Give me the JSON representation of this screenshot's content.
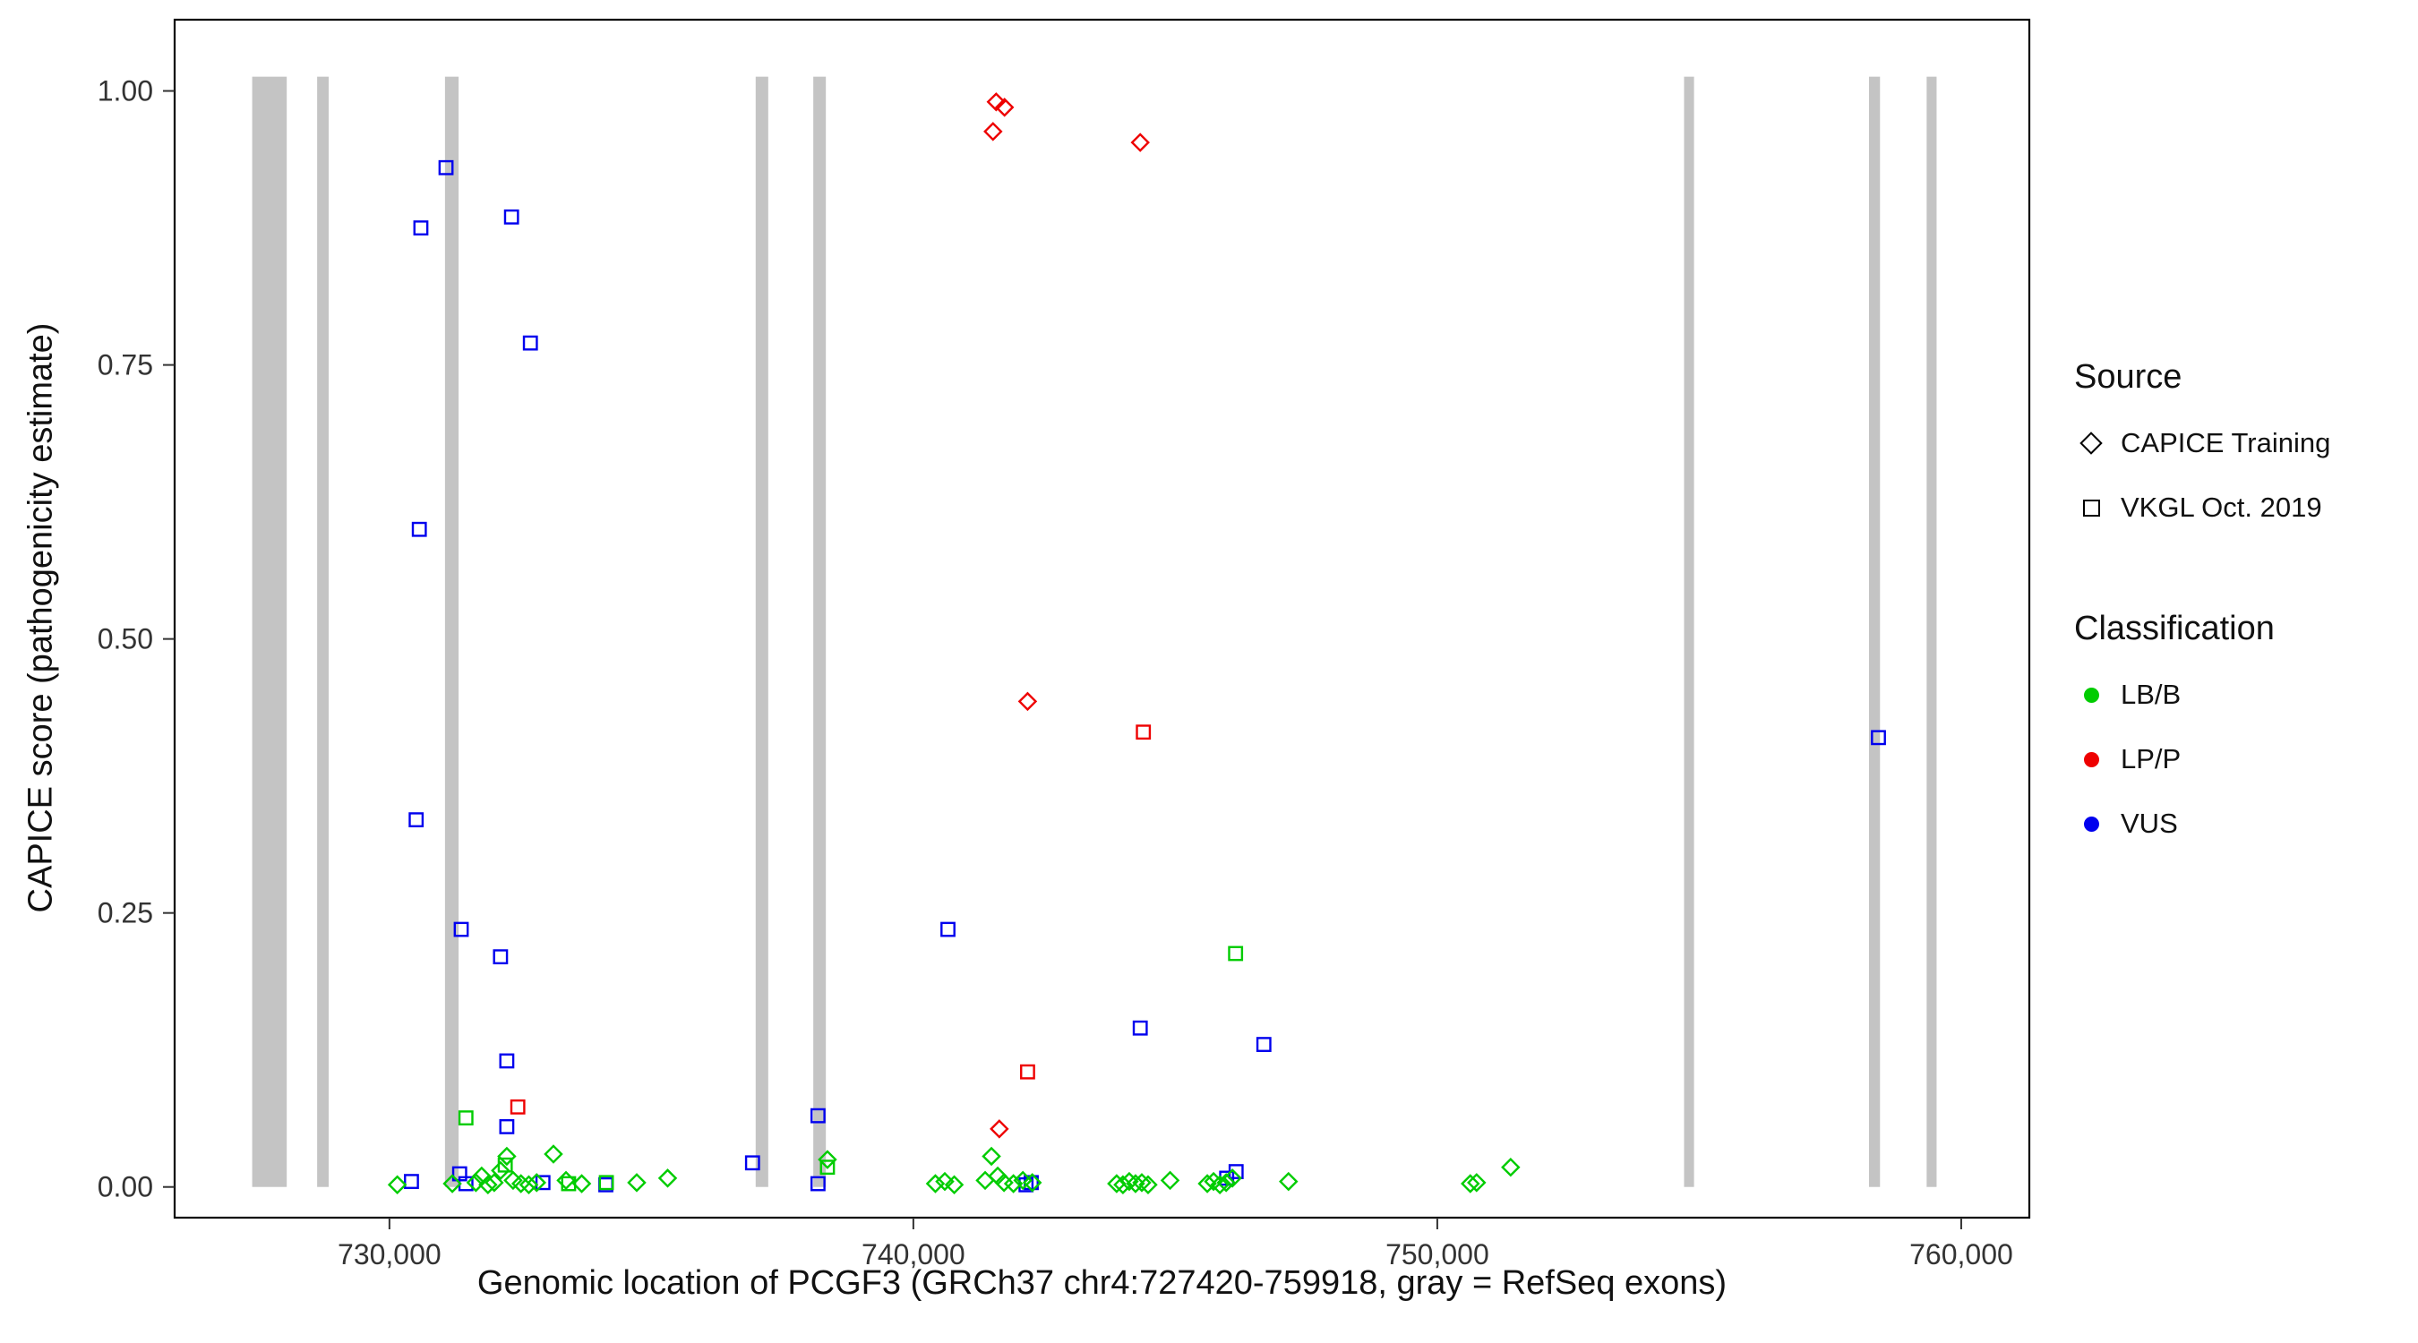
{
  "legend": {
    "source": {
      "title": "Source",
      "items": [
        {
          "label": "CAPICE Training",
          "shape": "diamond"
        },
        {
          "label": "VKGL Oct. 2019",
          "shape": "square"
        }
      ]
    },
    "classification": {
      "title": "Classification",
      "items": [
        {
          "label": "LB/B",
          "color": "#00CC00"
        },
        {
          "label": "LP/P",
          "color": "#EE0000"
        },
        {
          "label": "VUS",
          "color": "#0000EE"
        }
      ]
    }
  },
  "chart_data": {
    "type": "scatter",
    "title": "",
    "xlabel": "Genomic location of PCGF3 (GRCh37 chr4:727420-759918, gray = RefSeq exons)",
    "ylabel": "CAPICE score (pathogenicity estimate)",
    "xlim": [
      725900,
      761300
    ],
    "ylim": [
      -0.028,
      1.065
    ],
    "grid": false,
    "legend_position": "right",
    "x_ticks": [
      {
        "value": 730000,
        "label": "730,000"
      },
      {
        "value": 740000,
        "label": "740,000"
      },
      {
        "value": 750000,
        "label": "750,000"
      },
      {
        "value": 760000,
        "label": "760,000"
      }
    ],
    "y_ticks": [
      {
        "value": 0.0,
        "label": "0.00"
      },
      {
        "value": 0.25,
        "label": "0.25"
      },
      {
        "value": 0.5,
        "label": "0.50"
      },
      {
        "value": 0.75,
        "label": "0.75"
      },
      {
        "value": 1.0,
        "label": "1.00"
      }
    ],
    "exon_color": "#C4C4C4",
    "exon_y": [
      0.0,
      1.013
    ],
    "exons": [
      [
        727380,
        728040
      ],
      [
        728620,
        728840
      ],
      [
        731060,
        731320
      ],
      [
        736990,
        737230
      ],
      [
        738090,
        738330
      ],
      [
        754710,
        754900
      ],
      [
        758240,
        758450
      ],
      [
        759340,
        759530
      ]
    ],
    "series": [
      {
        "name": "VKGL Oct. 2019 / VUS",
        "source": "VKGL Oct. 2019",
        "classification": "VUS",
        "shape": "square",
        "color": "#0000EE",
        "points": [
          [
            731080,
            0.93
          ],
          [
            730600,
            0.875
          ],
          [
            732330,
            0.885
          ],
          [
            732690,
            0.77
          ],
          [
            730570,
            0.6
          ],
          [
            730510,
            0.335
          ],
          [
            731370,
            0.235
          ],
          [
            732120,
            0.21
          ],
          [
            740660,
            0.235
          ],
          [
            732240,
            0.115
          ],
          [
            744330,
            0.145
          ],
          [
            746690,
            0.13
          ],
          [
            758420,
            0.41
          ],
          [
            738180,
            0.065
          ],
          [
            732240,
            0.055
          ],
          [
            736930,
            0.022
          ],
          [
            730420,
            0.005
          ],
          [
            731340,
            0.012
          ],
          [
            732930,
            0.004
          ],
          [
            734130,
            0.002
          ],
          [
            738180,
            0.003
          ],
          [
            742250,
            0.004
          ],
          [
            746160,
            0.014
          ],
          [
            742150,
            0.002
          ],
          [
            745980,
            0.008
          ],
          [
            731460,
            0.003
          ]
        ]
      },
      {
        "name": "CAPICE Training / LP/P",
        "source": "CAPICE Training",
        "classification": "LP/P",
        "shape": "diamond",
        "color": "#EE0000",
        "points": [
          [
            741580,
            0.99
          ],
          [
            741740,
            0.985
          ],
          [
            741520,
            0.963
          ],
          [
            744330,
            0.953
          ],
          [
            742180,
            0.443
          ],
          [
            741640,
            0.053
          ]
        ]
      },
      {
        "name": "VKGL Oct. 2019 / LP/P",
        "source": "VKGL Oct. 2019",
        "classification": "LP/P",
        "shape": "square",
        "color": "#EE0000",
        "points": [
          [
            744390,
            0.415
          ],
          [
            742180,
            0.105
          ],
          [
            732450,
            0.073
          ]
        ]
      },
      {
        "name": "VKGL Oct. 2019 / LB/B",
        "source": "VKGL Oct. 2019",
        "classification": "LB/B",
        "shape": "square",
        "color": "#00CC00",
        "points": [
          [
            731460,
            0.063
          ],
          [
            746150,
            0.213
          ],
          [
            732210,
            0.02
          ],
          [
            738360,
            0.018
          ],
          [
            734140,
            0.004
          ],
          [
            733420,
            0.003
          ]
        ]
      },
      {
        "name": "CAPICE Training / LB/B",
        "source": "CAPICE Training",
        "classification": "LB/B",
        "shape": "diamond",
        "color": "#00CC00",
        "points": [
          [
            730150,
            0.002
          ],
          [
            731200,
            0.003
          ],
          [
            731650,
            0.004
          ],
          [
            731760,
            0.01
          ],
          [
            731880,
            0.002
          ],
          [
            732000,
            0.004
          ],
          [
            732120,
            0.015
          ],
          [
            732240,
            0.028
          ],
          [
            732360,
            0.006
          ],
          [
            732510,
            0.003
          ],
          [
            732660,
            0.002
          ],
          [
            732810,
            0.004
          ],
          [
            733130,
            0.03
          ],
          [
            733370,
            0.006
          ],
          [
            733670,
            0.003
          ],
          [
            734720,
            0.004
          ],
          [
            735310,
            0.008
          ],
          [
            738360,
            0.025
          ],
          [
            740420,
            0.003
          ],
          [
            740600,
            0.005
          ],
          [
            740780,
            0.002
          ],
          [
            741370,
            0.006
          ],
          [
            741490,
            0.028
          ],
          [
            741610,
            0.01
          ],
          [
            741730,
            0.004
          ],
          [
            741910,
            0.003
          ],
          [
            742090,
            0.006
          ],
          [
            742270,
            0.004
          ],
          [
            743880,
            0.003
          ],
          [
            744000,
            0.002
          ],
          [
            744120,
            0.005
          ],
          [
            744240,
            0.003
          ],
          [
            744360,
            0.004
          ],
          [
            744480,
            0.002
          ],
          [
            744900,
            0.006
          ],
          [
            745610,
            0.003
          ],
          [
            745730,
            0.005
          ],
          [
            745850,
            0.002
          ],
          [
            745970,
            0.004
          ],
          [
            746090,
            0.008
          ],
          [
            747160,
            0.005
          ],
          [
            750630,
            0.003
          ],
          [
            750750,
            0.004
          ],
          [
            751400,
            0.018
          ]
        ]
      }
    ]
  }
}
